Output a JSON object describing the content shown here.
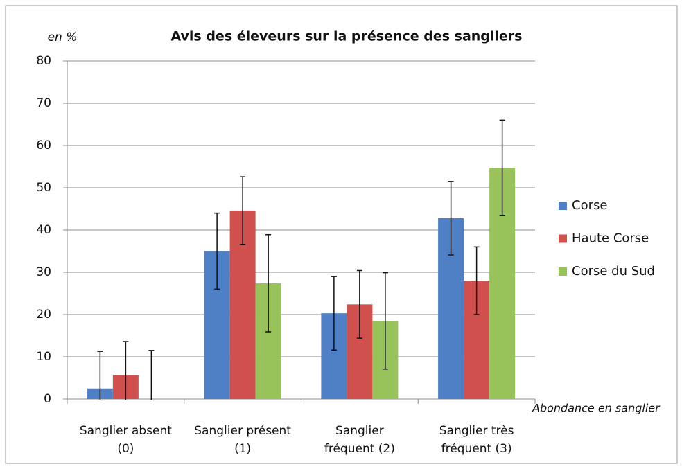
{
  "chart_data": {
    "type": "bar",
    "title": "Avis des éleveurs sur la présence des sangliers",
    "y_label": "en %",
    "x_label": "Abondance en sanglier",
    "categories": [
      [
        "Sanglier absent",
        "(0)"
      ],
      [
        "Sanglier présent",
        "(1)"
      ],
      [
        "Sanglier",
        "fréquent (2)"
      ],
      [
        "Sanglier très",
        "fréquent (3)"
      ]
    ],
    "series": [
      {
        "name": "Corse",
        "color": "#4f7fc4",
        "values": [
          2.5,
          35,
          20.3,
          42.8
        ],
        "errors": [
          8.8,
          9,
          8.7,
          8.7
        ]
      },
      {
        "name": "Haute Corse",
        "color": "#d0504d",
        "values": [
          5.6,
          44.6,
          22.4,
          28
        ],
        "errors": [
          8,
          8,
          8,
          8
        ]
      },
      {
        "name": "Corse du Sud",
        "color": "#98c25a",
        "values": [
          0,
          27.4,
          18.5,
          54.7
        ],
        "errors": [
          11.5,
          11.5,
          11.4,
          11.3
        ]
      }
    ],
    "ylim": [
      0,
      80
    ],
    "yticks": [
      0,
      10,
      20,
      30,
      40,
      50,
      60,
      70,
      80
    ],
    "grid": true,
    "legend": "right"
  }
}
